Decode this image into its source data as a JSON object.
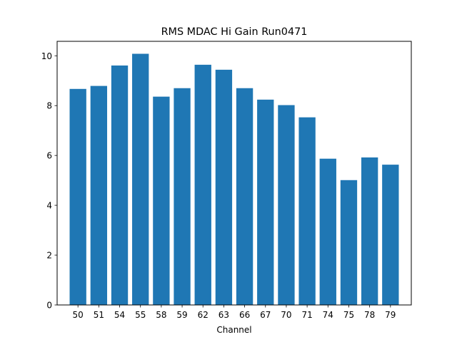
{
  "chart_data": {
    "type": "bar",
    "title": "RMS MDAC Hi Gain Run0471",
    "xlabel": "Channel",
    "ylabel": "",
    "categories": [
      "50",
      "51",
      "54",
      "55",
      "58",
      "59",
      "62",
      "63",
      "66",
      "67",
      "70",
      "71",
      "74",
      "75",
      "78",
      "79"
    ],
    "values": [
      8.67,
      8.79,
      9.61,
      10.08,
      8.36,
      8.7,
      9.64,
      9.44,
      8.7,
      8.24,
      8.02,
      7.53,
      5.87,
      5.01,
      5.92,
      5.63
    ],
    "ylim": [
      0,
      10.58
    ],
    "yticks": [
      0,
      2,
      4,
      6,
      8,
      10
    ],
    "bar_color": "#1f77b4",
    "grid": false,
    "legend": "none"
  }
}
